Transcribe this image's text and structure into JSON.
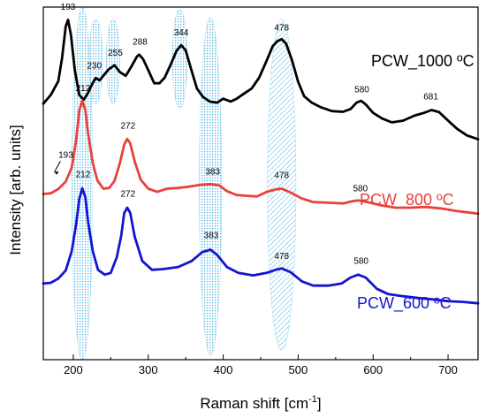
{
  "chart_data": {
    "type": "line",
    "title": "",
    "xlabel": "Raman shift [cm",
    "xlabel_sup": "-1",
    "xlabel_end": "]",
    "ylabel": "Intensity [arb. units]",
    "xlim": [
      160,
      740
    ],
    "ylim": [
      0,
      100
    ],
    "x_ticks": [
      200,
      300,
      400,
      500,
      600,
      700
    ],
    "x_minor_step": 50,
    "y_tick_labels": false,
    "grid": false,
    "legend": "none",
    "series": [
      {
        "name": "PCW_1000 ºC",
        "color": "#000000",
        "points": [
          [
            160,
            72.6
          ],
          [
            170,
            75.1
          ],
          [
            180,
            79.0
          ],
          [
            185,
            85.5
          ],
          [
            190,
            94.5
          ],
          [
            193,
            96.4
          ],
          [
            197,
            91.9
          ],
          [
            202,
            82.2
          ],
          [
            208,
            75.1
          ],
          [
            214,
            73.7
          ],
          [
            220,
            75.8
          ],
          [
            225,
            78.1
          ],
          [
            230,
            79.9
          ],
          [
            235,
            79.2
          ],
          [
            240,
            80.5
          ],
          [
            247,
            82.3
          ],
          [
            255,
            83.5
          ],
          [
            262,
            81.6
          ],
          [
            270,
            80.5
          ],
          [
            278,
            83.3
          ],
          [
            285,
            86.0
          ],
          [
            288,
            86.5
          ],
          [
            293,
            85.3
          ],
          [
            300,
            82.1
          ],
          [
            308,
            78.4
          ],
          [
            315,
            78.4
          ],
          [
            322,
            80.0
          ],
          [
            330,
            83.7
          ],
          [
            338,
            87.7
          ],
          [
            344,
            89.2
          ],
          [
            350,
            87.7
          ],
          [
            358,
            81.8
          ],
          [
            365,
            76.9
          ],
          [
            373,
            74.5
          ],
          [
            382,
            73.2
          ],
          [
            392,
            72.9
          ],
          [
            400,
            74.0
          ],
          [
            410,
            73.2
          ],
          [
            418,
            74.0
          ],
          [
            428,
            75.5
          ],
          [
            438,
            76.9
          ],
          [
            448,
            80.0
          ],
          [
            458,
            84.8
          ],
          [
            466,
            88.9
          ],
          [
            472,
            90.3
          ],
          [
            478,
            90.9
          ],
          [
            484,
            89.6
          ],
          [
            492,
            84.8
          ],
          [
            500,
            78.8
          ],
          [
            508,
            74.7
          ],
          [
            518,
            72.9
          ],
          [
            530,
            71.6
          ],
          [
            545,
            70.5
          ],
          [
            560,
            70.3
          ],
          [
            570,
            71.1
          ],
          [
            578,
            72.9
          ],
          [
            584,
            73.4
          ],
          [
            590,
            72.4
          ],
          [
            600,
            70.0
          ],
          [
            612,
            68.4
          ],
          [
            625,
            67.3
          ],
          [
            640,
            67.8
          ],
          [
            655,
            69.2
          ],
          [
            668,
            70.0
          ],
          [
            678,
            70.8
          ],
          [
            688,
            70.2
          ],
          [
            700,
            67.8
          ],
          [
            712,
            65.5
          ],
          [
            725,
            63.6
          ],
          [
            740,
            62.5
          ]
        ],
        "label_text": "PCW_1000 ºC"
      },
      {
        "name": "PCW_800 ºC",
        "color": "#e8413c",
        "points": [
          [
            160,
            47.0
          ],
          [
            170,
            47.2
          ],
          [
            180,
            48.4
          ],
          [
            190,
            50.5
          ],
          [
            198,
            54.5
          ],
          [
            204,
            62.4
          ],
          [
            208,
            70.6
          ],
          [
            212,
            73.4
          ],
          [
            216,
            70.9
          ],
          [
            220,
            63.8
          ],
          [
            226,
            55.8
          ],
          [
            232,
            50.9
          ],
          [
            240,
            48.5
          ],
          [
            248,
            48.7
          ],
          [
            255,
            50.7
          ],
          [
            262,
            55.6
          ],
          [
            268,
            61.0
          ],
          [
            272,
            62.6
          ],
          [
            276,
            61.3
          ],
          [
            282,
            56.2
          ],
          [
            290,
            51.0
          ],
          [
            300,
            48.5
          ],
          [
            312,
            47.6
          ],
          [
            325,
            48.5
          ],
          [
            340,
            48.7
          ],
          [
            355,
            49.1
          ],
          [
            370,
            49.6
          ],
          [
            383,
            49.8
          ],
          [
            395,
            49.4
          ],
          [
            405,
            47.8
          ],
          [
            418,
            46.7
          ],
          [
            430,
            46.5
          ],
          [
            445,
            46.3
          ],
          [
            458,
            47.6
          ],
          [
            470,
            48.3
          ],
          [
            478,
            48.5
          ],
          [
            490,
            47.4
          ],
          [
            505,
            45.7
          ],
          [
            520,
            44.7
          ],
          [
            540,
            44.5
          ],
          [
            560,
            44.3
          ],
          [
            572,
            44.9
          ],
          [
            580,
            45.2
          ],
          [
            592,
            44.7
          ],
          [
            610,
            43.8
          ],
          [
            630,
            43.1
          ],
          [
            650,
            43.1
          ],
          [
            670,
            43.3
          ],
          [
            690,
            42.9
          ],
          [
            710,
            42.2
          ],
          [
            725,
            41.8
          ],
          [
            740,
            41.4
          ]
        ],
        "label_text": "PCW_800 ºC"
      },
      {
        "name": "PCW_600 ºC",
        "color": "#1414d0",
        "points": [
          [
            160,
            21.6
          ],
          [
            170,
            21.8
          ],
          [
            180,
            23.0
          ],
          [
            190,
            25.3
          ],
          [
            198,
            30.8
          ],
          [
            204,
            38.7
          ],
          [
            208,
            45.5
          ],
          [
            212,
            48.6
          ],
          [
            216,
            46.2
          ],
          [
            220,
            38.7
          ],
          [
            226,
            30.8
          ],
          [
            233,
            25.5
          ],
          [
            242,
            24.1
          ],
          [
            250,
            24.6
          ],
          [
            258,
            29.0
          ],
          [
            264,
            35.2
          ],
          [
            268,
            41.6
          ],
          [
            272,
            43.1
          ],
          [
            276,
            41.6
          ],
          [
            282,
            34.8
          ],
          [
            292,
            28.0
          ],
          [
            305,
            25.5
          ],
          [
            320,
            25.7
          ],
          [
            340,
            26.3
          ],
          [
            358,
            28.0
          ],
          [
            372,
            30.5
          ],
          [
            383,
            31.2
          ],
          [
            392,
            29.7
          ],
          [
            405,
            26.3
          ],
          [
            420,
            24.6
          ],
          [
            440,
            23.9
          ],
          [
            458,
            24.6
          ],
          [
            470,
            25.5
          ],
          [
            478,
            25.9
          ],
          [
            490,
            24.8
          ],
          [
            505,
            22.2
          ],
          [
            520,
            21.0
          ],
          [
            540,
            21.0
          ],
          [
            558,
            21.6
          ],
          [
            570,
            23.3
          ],
          [
            580,
            24.1
          ],
          [
            590,
            23.3
          ],
          [
            605,
            20.1
          ],
          [
            620,
            18.6
          ],
          [
            640,
            18.0
          ],
          [
            660,
            17.5
          ],
          [
            680,
            17.1
          ],
          [
            700,
            16.6
          ],
          [
            720,
            16.4
          ],
          [
            740,
            16.0
          ]
        ],
        "label_text": "PCW_600 ºC"
      }
    ],
    "peak_labels": [
      {
        "text": "193",
        "x": 193,
        "y": 99.3
      },
      {
        "text": "230",
        "x": 228,
        "y": 82.6
      },
      {
        "text": "255",
        "x": 256,
        "y": 86.2
      },
      {
        "text": "288",
        "x": 289,
        "y": 89.3
      },
      {
        "text": "344",
        "x": 344,
        "y": 92.0
      },
      {
        "text": "478",
        "x": 478,
        "y": 93.3
      },
      {
        "text": "580",
        "x": 585,
        "y": 75.8
      },
      {
        "text": "681",
        "x": 677,
        "y": 73.8
      },
      {
        "text": "212",
        "x": 213,
        "y": 76.2
      },
      {
        "text": "272",
        "x": 273,
        "y": 65.5
      },
      {
        "text": "193",
        "x": 190,
        "y": 57.3
      },
      {
        "text": "383",
        "x": 386,
        "y": 52.5
      },
      {
        "text": "478",
        "x": 478,
        "y": 51.5
      },
      {
        "text": "580",
        "x": 583,
        "y": 47.8
      },
      {
        "text": "212",
        "x": 213,
        "y": 51.7
      },
      {
        "text": "272",
        "x": 273,
        "y": 46.2
      },
      {
        "text": "383",
        "x": 384,
        "y": 34.5
      },
      {
        "text": "478",
        "x": 478,
        "y": 28.6
      },
      {
        "text": "580",
        "x": 584,
        "y": 27.2
      }
    ],
    "highlight_bands": [
      {
        "center": 212,
        "y_center": 50,
        "half_width": 14,
        "half_height": 50,
        "hatch": "dots"
      },
      {
        "center": 230,
        "y_center": 84.5,
        "half_width": 9,
        "half_height": 12,
        "hatch": "dots"
      },
      {
        "center": 253,
        "y_center": 84.5,
        "half_width": 9,
        "half_height": 12,
        "hatch": "dots"
      },
      {
        "center": 342,
        "y_center": 85.4,
        "half_width": 10,
        "half_height": 14,
        "hatch": "dots"
      },
      {
        "center": 383,
        "y_center": 49.1,
        "half_width": 15,
        "half_height": 48,
        "hatch": "dots"
      },
      {
        "center": 478,
        "y_center": 49.6,
        "half_width": 19,
        "half_height": 47,
        "hatch": "diagonal"
      }
    ],
    "band_color": "#2ea8df",
    "label_193_arrow": {
      "from_x": 194,
      "from_y": 57.3,
      "to_x": 190,
      "to_y": 55.2
    }
  }
}
